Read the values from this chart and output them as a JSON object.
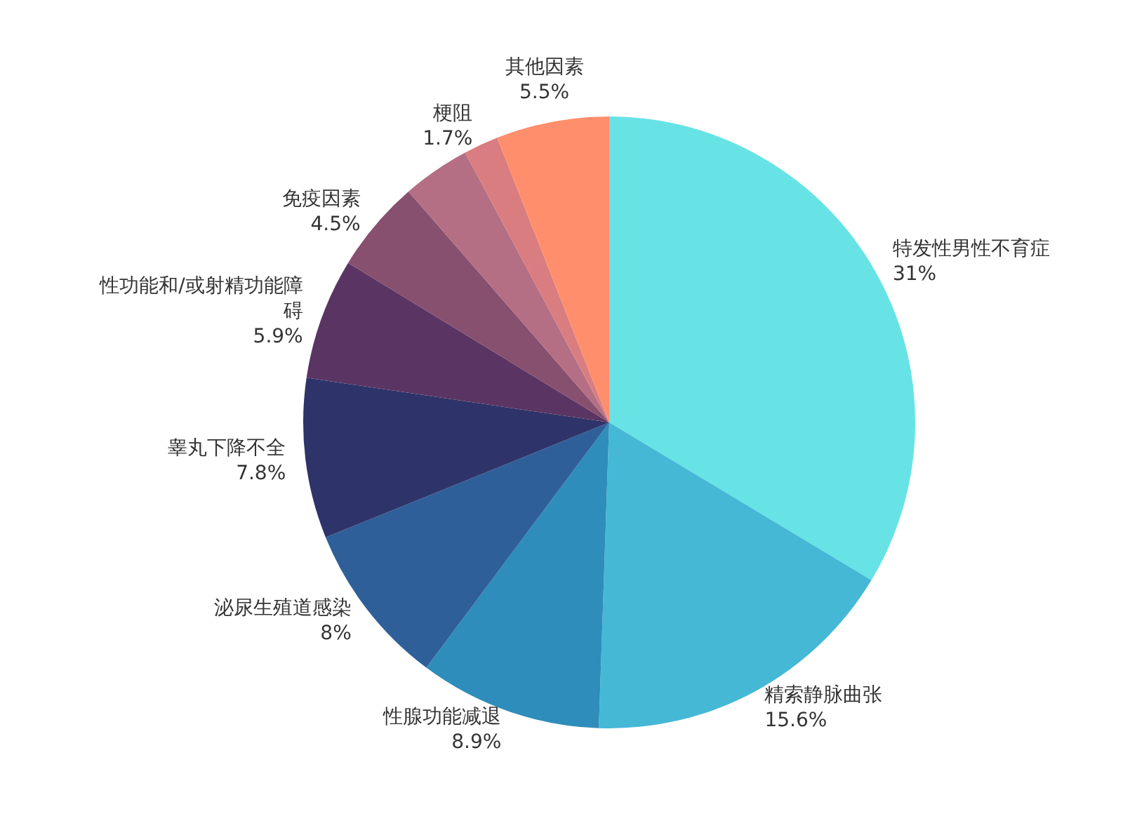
{
  "chart_data": {
    "type": "pie",
    "categories": [
      "特发性男性不育症",
      "精索静脉曲张",
      "性腺功能减退",
      "泌尿生殖道感染",
      "睾丸下降不全",
      "性功能和/或射精功能障碍",
      "免疫因素",
      null,
      "梗阻",
      "其他因素"
    ],
    "values": [
      31,
      15.6,
      8.9,
      8,
      7.8,
      5.9,
      4.5,
      3.3,
      1.7,
      5.5
    ],
    "value_labels": [
      "31%",
      "15.6%",
      "8.9%",
      "8%",
      "7.8%",
      "5.9%",
      "4.5%",
      null,
      "1.7%",
      "5.5%"
    ],
    "colors": [
      "#67e3e6",
      "#45b8d6",
      "#2e8dba",
      "#2f5f99",
      "#2e3469",
      "#5a3563",
      "#87506f",
      "#b46f85",
      "#da7d80",
      "#ff8f6c"
    ],
    "legend": false
  }
}
